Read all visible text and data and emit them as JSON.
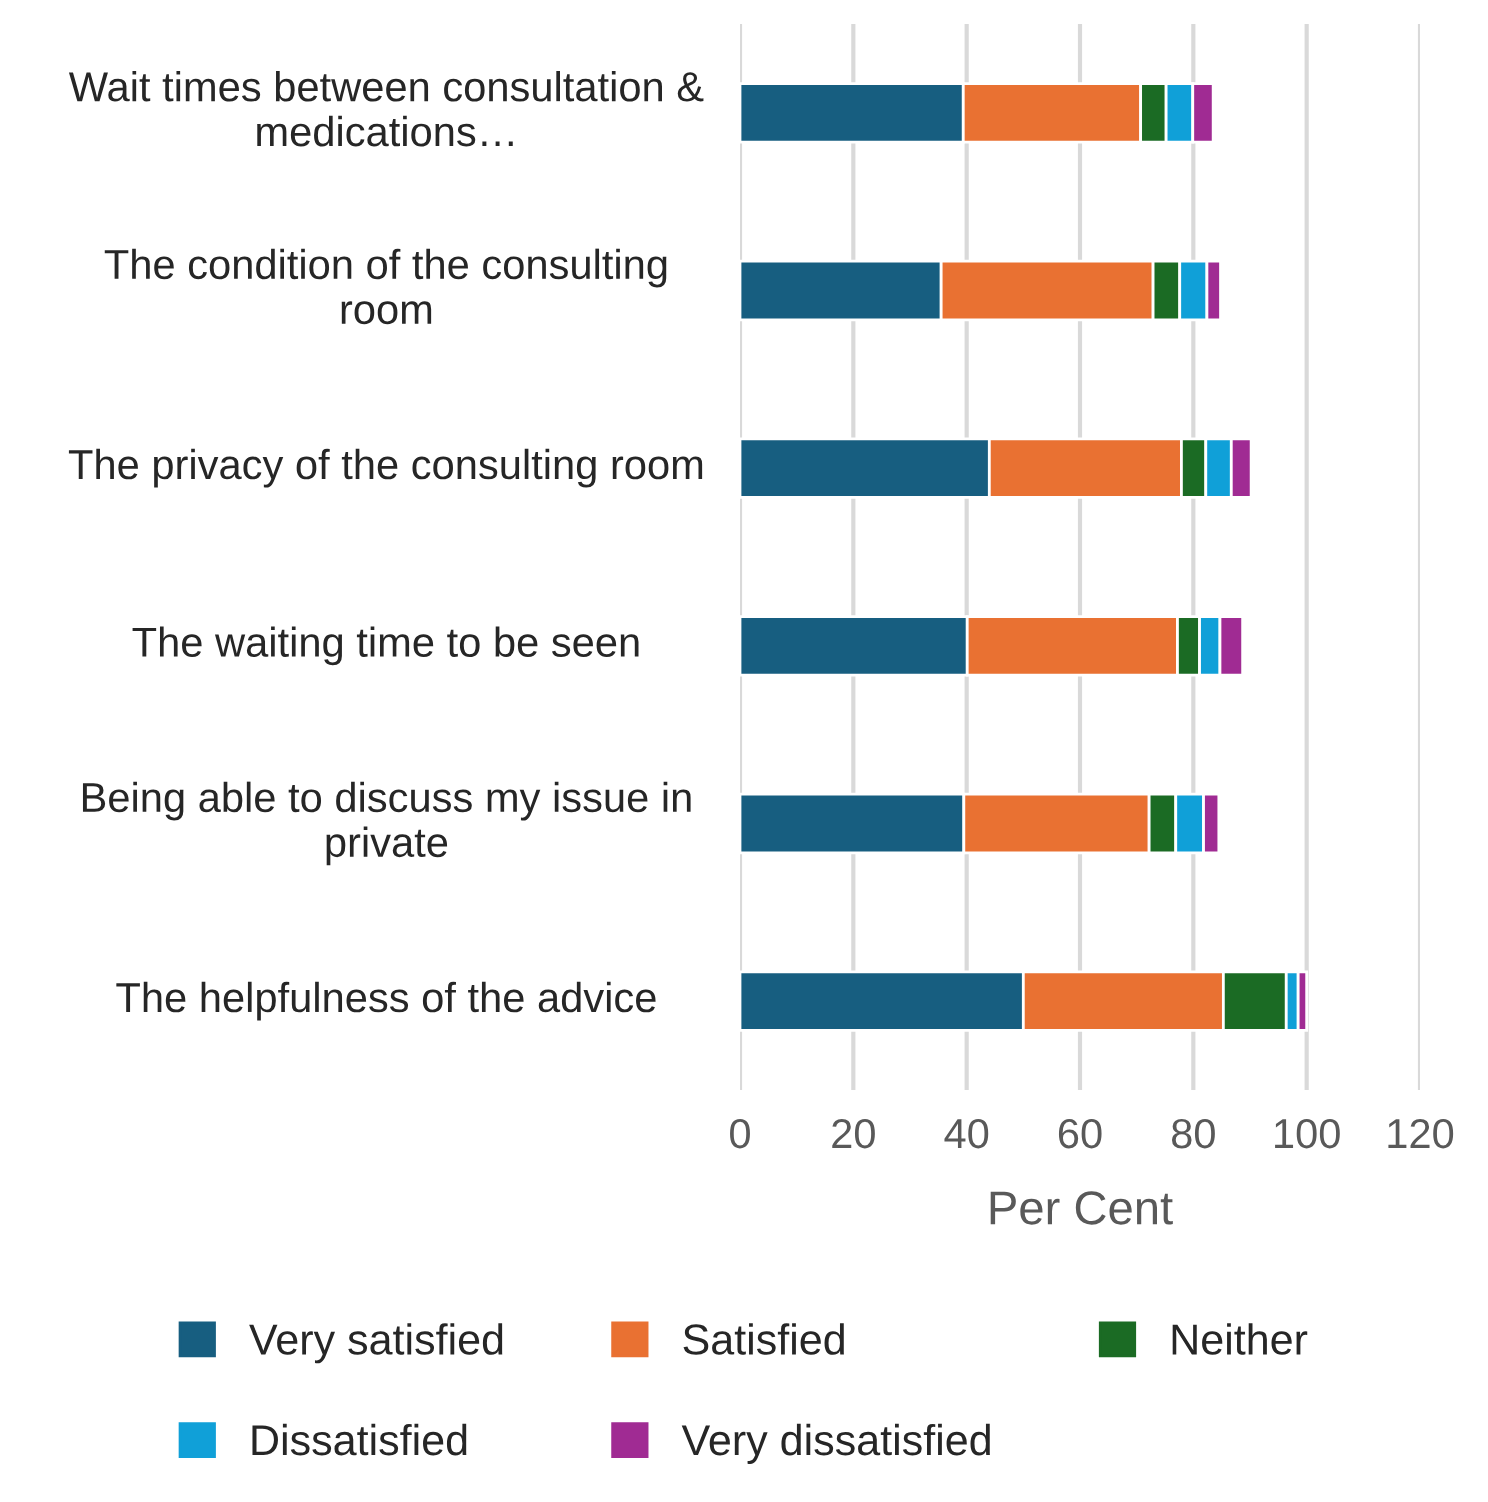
{
  "chart_data": {
    "type": "bar",
    "orientation": "horizontal",
    "stacked": true,
    "xlabel": "Per Cent",
    "categories": [
      "Wait times between consultation & medications…",
      "The condition of the consulting room",
      "The privacy of the consulting room",
      "The waiting time to be seen",
      "Being able to discuss my issue in private",
      "The helpfulness of the advice"
    ],
    "series": [
      {
        "name": "Very satisfied",
        "color": "#175e80",
        "values": [
          39.4,
          35.5,
          44.0,
          40.1,
          39.5,
          50.0
        ]
      },
      {
        "name": "Satisfied",
        "color": "#e97132",
        "values": [
          31.3,
          37.4,
          33.9,
          37.1,
          32.7,
          35.3
        ]
      },
      {
        "name": "Neither",
        "color": "#1b6b24",
        "values": [
          4.5,
          4.7,
          4.3,
          3.9,
          4.7,
          11.1
        ]
      },
      {
        "name": "Dissatisfied",
        "color": "#10a0d8",
        "values": [
          4.7,
          4.8,
          4.5,
          3.6,
          4.9,
          2.1
        ]
      },
      {
        "name": "Very dissatisfied",
        "color": "#a02b93",
        "values": [
          3.6,
          2.4,
          3.5,
          4.0,
          2.7,
          1.5
        ]
      }
    ],
    "xlim": [
      0,
      120
    ],
    "xticks": [
      0,
      20,
      40,
      60,
      80,
      100,
      120
    ],
    "grid": "x",
    "legend": "bottom"
  }
}
